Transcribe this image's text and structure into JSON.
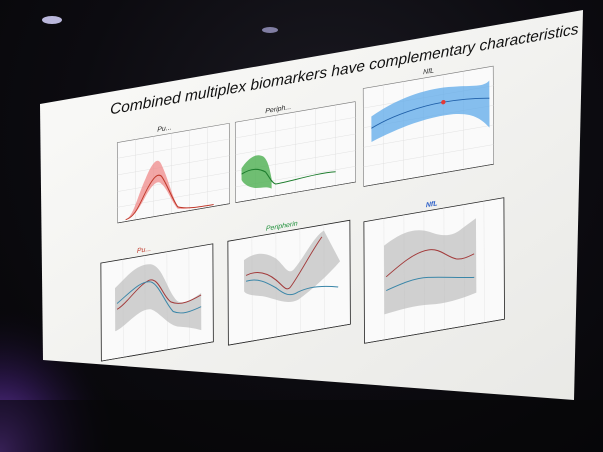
{
  "scene": {
    "description_type": "photo of a projected presentation slide",
    "colors": {
      "room": "#0b0b10",
      "screen": "#f4f4f2",
      "stage_light": "#7a3fd0",
      "panel_frame": "#222222"
    }
  },
  "slide": {
    "title": "Combined multiplex biomarkers have complementary characteristics",
    "top_row": [
      {
        "title": "Pu...",
        "title_color": "#222222",
        "fill_color": "#ef8a8a",
        "line_color": "#c0392b"
      },
      {
        "title": "Periph...",
        "title_color": "#222222",
        "fill_color": "#4caf50",
        "line_color": "#1e7d2e"
      },
      {
        "title": "NfL",
        "title_color": "#222222",
        "fill_color": "#5da9e9",
        "line_color": "#1f5fa8",
        "marker_color": "#e53935"
      }
    ],
    "bottom_row": [
      {
        "title": "Pu...",
        "title_color": "#c0392b"
      },
      {
        "title": "Peripherin",
        "title_color": "#1e8f3a"
      },
      {
        "title": "NfL",
        "title_color": "#2a5dc7"
      }
    ],
    "series_colors": {
      "red": "#a23a3a",
      "blue": "#3a86a8",
      "grey_band": "#bdbdbd"
    }
  }
}
